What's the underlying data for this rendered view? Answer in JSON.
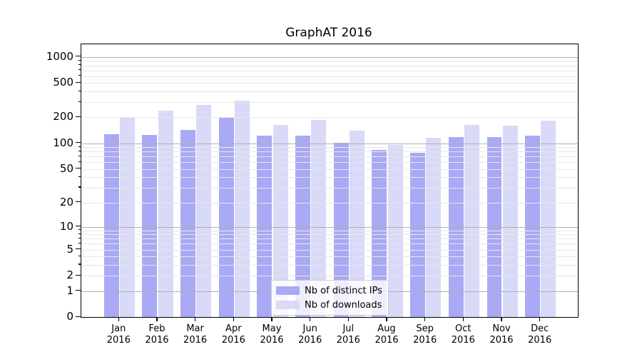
{
  "window": {
    "background": "#ffffff"
  },
  "chart_data": {
    "type": "bar",
    "title": "GraphAT 2016",
    "categories": [
      "Jan",
      "Feb",
      "Mar",
      "Apr",
      "May",
      "Jun",
      "Jul",
      "Aug",
      "Sep",
      "Oct",
      "Nov",
      "Dec"
    ],
    "category_year": "2016",
    "series": [
      {
        "name": "Nb of distinct IPs",
        "color": "#a9a9f5",
        "values": [
          127,
          124,
          143,
          200,
          123,
          122,
          102,
          83,
          77,
          118,
          119,
          123
        ]
      },
      {
        "name": "Nb of downloads",
        "color": "#d9d9f8",
        "values": [
          200,
          240,
          277,
          310,
          163,
          187,
          140,
          95,
          115,
          162,
          160,
          184
        ]
      }
    ],
    "yscale": "log1p",
    "ylim": [
      0,
      1400
    ],
    "y_ticks": [
      0,
      1,
      2,
      5,
      10,
      20,
      50,
      100,
      200,
      500,
      1000
    ],
    "y_major_gridlines": [
      1,
      10,
      100,
      1000
    ],
    "y_minor_gridlines": [
      2,
      3,
      4,
      5,
      6,
      7,
      8,
      9,
      20,
      30,
      40,
      50,
      60,
      70,
      80,
      90,
      200,
      300,
      400,
      500,
      600,
      700,
      800,
      900
    ],
    "grid": {
      "major_color": "#b0b0b0",
      "minor_color": "#e7e7e7"
    },
    "axis_color": "#000000",
    "legend": {
      "position": "lower-center",
      "border_color": "#cccccc",
      "background": "rgba(255,255,255,0.8)"
    },
    "xlabel": "",
    "ylabel": ""
  }
}
